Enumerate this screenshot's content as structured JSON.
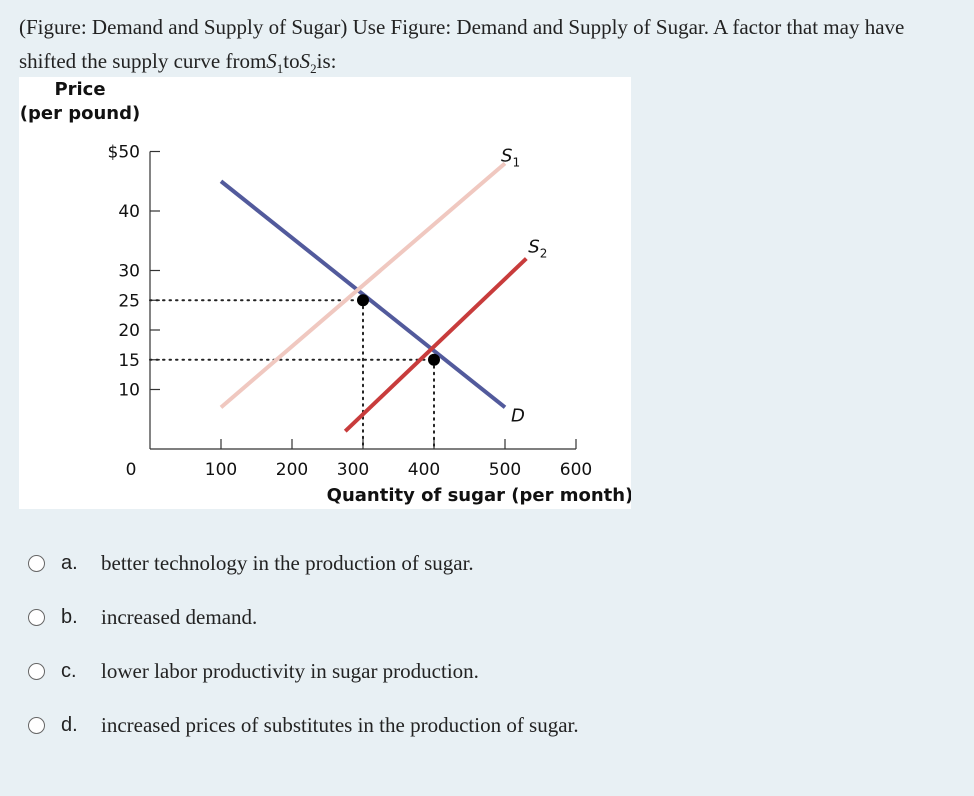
{
  "question": {
    "text_part1": "(Figure: Demand and Supply of Sugar) Use Figure: Demand and Supply of Sugar. A factor that may have shifted the supply curve from",
    "s_letter": "S",
    "s1_sub": "1",
    "to": "to",
    "s2_sub": "2",
    "text_end": "is:"
  },
  "options": [
    {
      "letter": "a.",
      "text": "better technology in the production of sugar."
    },
    {
      "letter": "b.",
      "text": "increased demand."
    },
    {
      "letter": "c.",
      "text": "lower labor productivity in sugar production."
    },
    {
      "letter": "d.",
      "text": "increased prices of substitutes in the production of sugar."
    }
  ],
  "chart_data": {
    "type": "line",
    "ylabel_line1": "Price",
    "ylabel_line2": "(per pound)",
    "xlabel": "Quantity of sugar (per month)",
    "x_origin_label": "0",
    "y_ticks": [
      {
        "value": 50,
        "label": "$50"
      },
      {
        "value": 40,
        "label": "40"
      },
      {
        "value": 30,
        "label": "30"
      },
      {
        "value": 25,
        "label": "25"
      },
      {
        "value": 20,
        "label": "20"
      },
      {
        "value": 15,
        "label": "15"
      },
      {
        "value": 10,
        "label": "10"
      }
    ],
    "x_ticks": [
      {
        "value": 100,
        "label": "100"
      },
      {
        "value": 200,
        "label": "200"
      },
      {
        "value": 300,
        "label": "300"
      },
      {
        "value": 400,
        "label": "400"
      },
      {
        "value": 500,
        "label": "500"
      },
      {
        "value": 600,
        "label": "600"
      }
    ],
    "xlim": [
      0,
      600
    ],
    "ylim": [
      0,
      50
    ],
    "series": [
      {
        "name": "D",
        "color": "#525a9c",
        "points": [
          [
            100,
            45
          ],
          [
            500,
            7
          ]
        ]
      },
      {
        "name": "S1",
        "color": "#f0c8c0",
        "points": [
          [
            100,
            7
          ],
          [
            500,
            48
          ]
        ]
      },
      {
        "name": "S2",
        "color": "#c83c3c",
        "points": [
          [
            275,
            3
          ],
          [
            530,
            32
          ]
        ]
      }
    ],
    "equilibria": [
      {
        "x": 300,
        "y": 25
      },
      {
        "x": 400,
        "y": 15
      }
    ]
  }
}
